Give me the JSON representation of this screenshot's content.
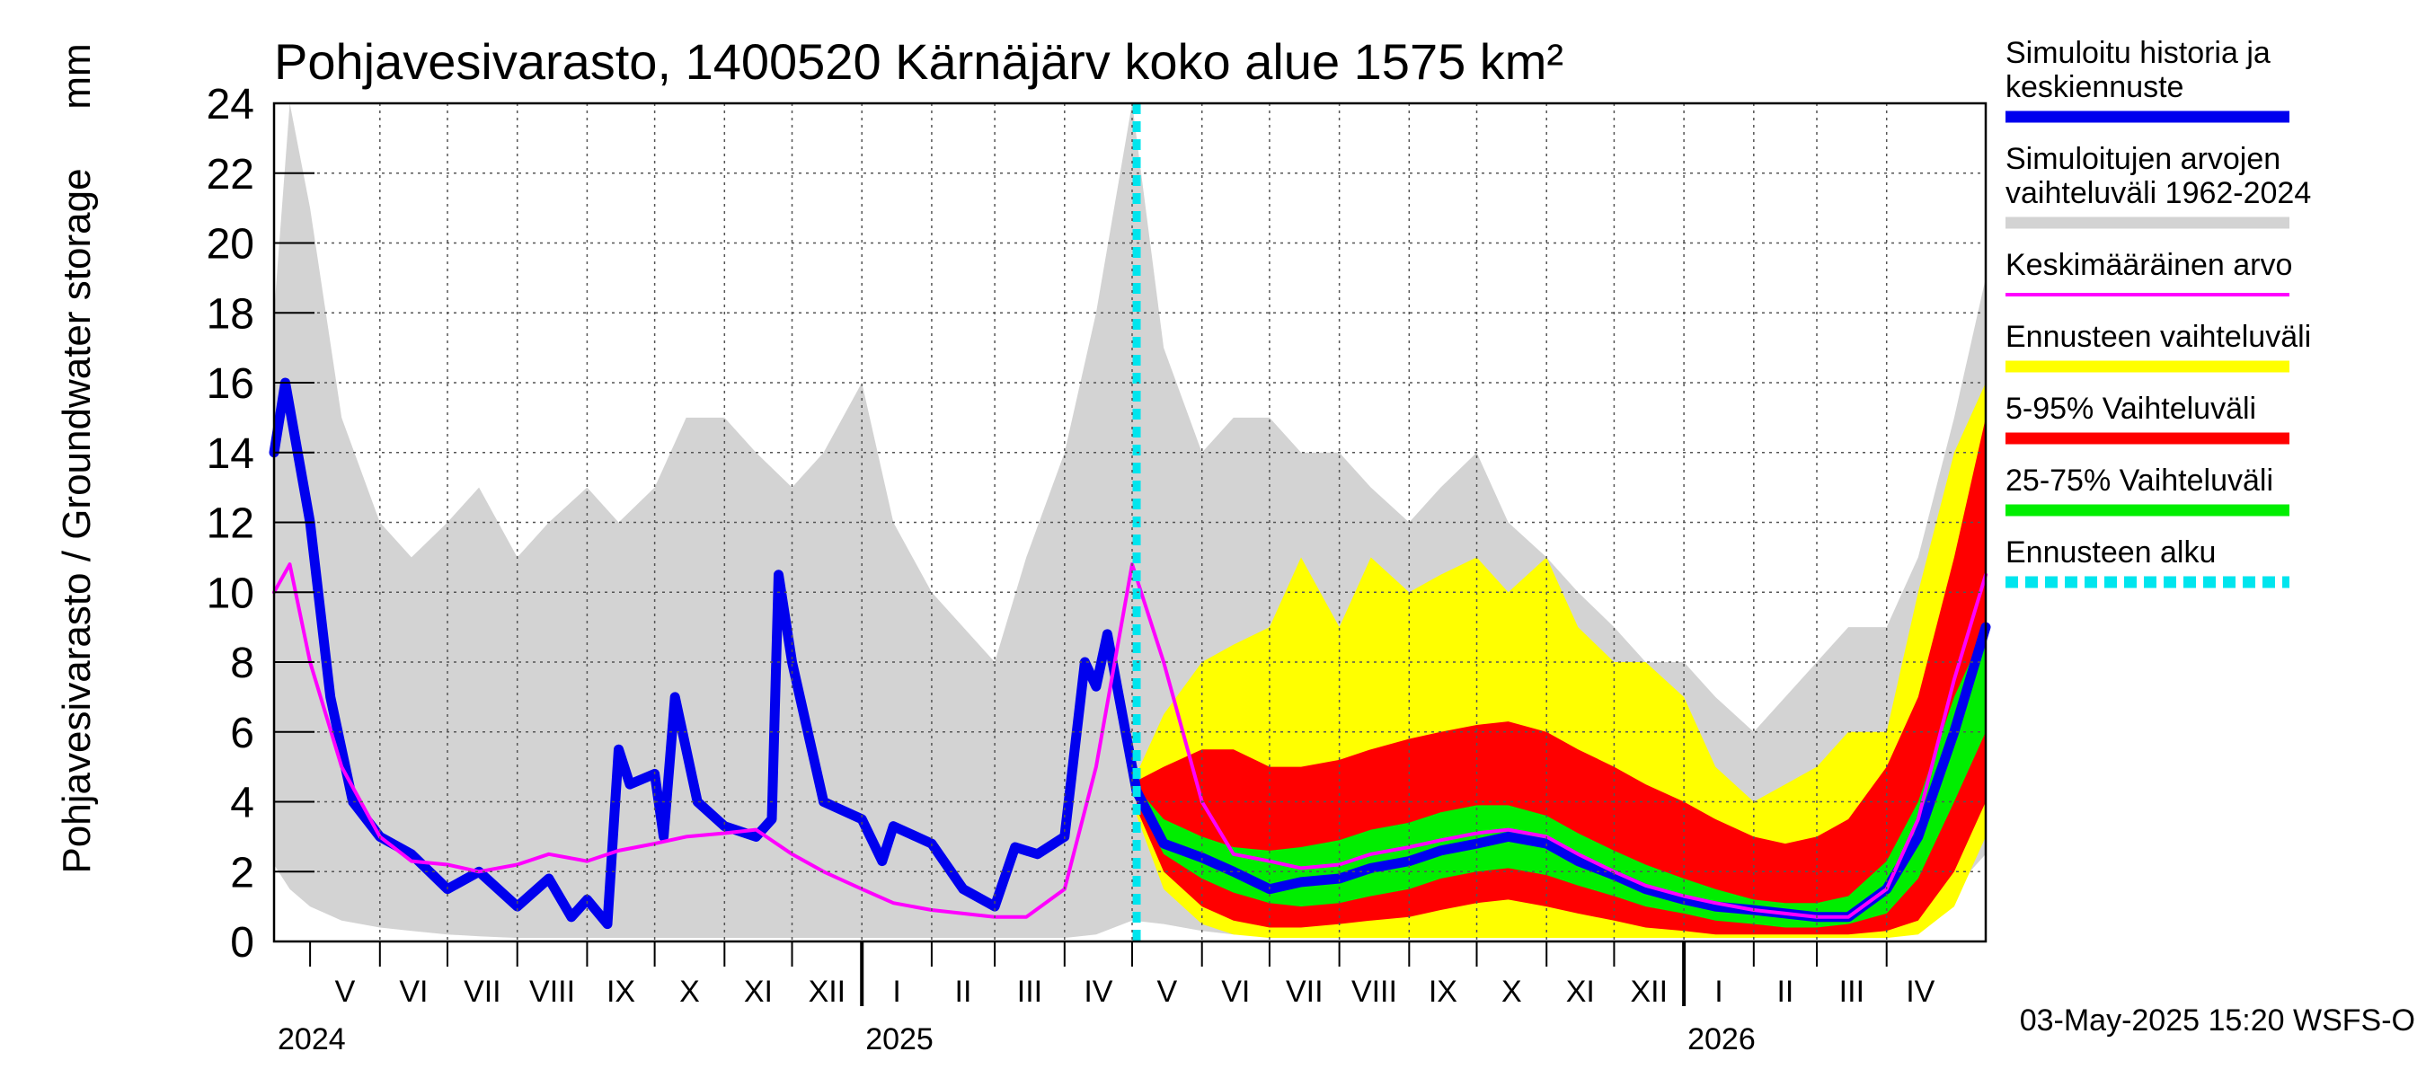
{
  "chart_data": {
    "type": "area",
    "title": "Pohjavesivarasto, 1400520 Kärnäjärv koko alue 1575 km²",
    "ylabel": "Pohjavesivarasto / Groundwater storage",
    "yunit": "mm",
    "ylim": [
      0,
      24
    ],
    "yticks": [
      "0",
      "2",
      "4",
      "6",
      "8",
      "10",
      "12",
      "14",
      "16",
      "18",
      "20",
      "22",
      "24"
    ],
    "xlim": [
      "2024-04-15",
      "2026-05-15"
    ],
    "grid": true,
    "legend_position": "right",
    "forecast_start": "2025-05-03",
    "months": [
      {
        "label": "V",
        "start": "2024-05-01",
        "end": "2024-06-01"
      },
      {
        "label": "VI",
        "start": "2024-06-01",
        "end": "2024-07-01"
      },
      {
        "label": "VII",
        "start": "2024-07-01",
        "end": "2024-08-01"
      },
      {
        "label": "VIII",
        "start": "2024-08-01",
        "end": "2024-09-01"
      },
      {
        "label": "IX",
        "start": "2024-09-01",
        "end": "2024-10-01"
      },
      {
        "label": "X",
        "start": "2024-10-01",
        "end": "2024-11-01"
      },
      {
        "label": "XI",
        "start": "2024-11-01",
        "end": "2024-12-01"
      },
      {
        "label": "XII",
        "start": "2024-12-01",
        "end": "2025-01-01"
      },
      {
        "label": "I",
        "start": "2025-01-01",
        "end": "2025-02-01"
      },
      {
        "label": "II",
        "start": "2025-02-01",
        "end": "2025-03-01"
      },
      {
        "label": "III",
        "start": "2025-03-01",
        "end": "2025-04-01"
      },
      {
        "label": "IV",
        "start": "2025-04-01",
        "end": "2025-05-01"
      },
      {
        "label": "V",
        "start": "2025-05-01",
        "end": "2025-06-01"
      },
      {
        "label": "VI",
        "start": "2025-06-01",
        "end": "2025-07-01"
      },
      {
        "label": "VII",
        "start": "2025-07-01",
        "end": "2025-08-01"
      },
      {
        "label": "VIII",
        "start": "2025-08-01",
        "end": "2025-09-01"
      },
      {
        "label": "IX",
        "start": "2025-09-01",
        "end": "2025-10-01"
      },
      {
        "label": "X",
        "start": "2025-10-01",
        "end": "2025-11-01"
      },
      {
        "label": "XI",
        "start": "2025-11-01",
        "end": "2025-12-01"
      },
      {
        "label": "XII",
        "start": "2025-12-01",
        "end": "2026-01-01"
      },
      {
        "label": "I",
        "start": "2026-01-01",
        "end": "2026-02-01"
      },
      {
        "label": "II",
        "start": "2026-02-01",
        "end": "2026-03-01"
      },
      {
        "label": "III",
        "start": "2026-03-01",
        "end": "2026-04-01"
      },
      {
        "label": "IV",
        "start": "2026-04-01",
        "end": "2026-05-01"
      }
    ],
    "years": [
      {
        "label": "2024",
        "date": "2024-04-15"
      },
      {
        "label": "2025",
        "date": "2025-01-01"
      },
      {
        "label": "2026",
        "date": "2026-01-01"
      }
    ],
    "series": [
      {
        "name": "Simuloitujen arvojen vaihteluväli 1962-2024",
        "kind": "band",
        "color": "#d3d3d3",
        "x": [
          "2024-04-15",
          "2024-04-22",
          "2024-05-01",
          "2024-05-15",
          "2024-06-01",
          "2024-06-15",
          "2024-07-01",
          "2024-07-15",
          "2024-08-01",
          "2024-08-15",
          "2024-09-01",
          "2024-09-15",
          "2024-10-01",
          "2024-10-15",
          "2024-11-01",
          "2024-11-15",
          "2024-12-01",
          "2024-12-15",
          "2025-01-01",
          "2025-01-15",
          "2025-02-01",
          "2025-02-15",
          "2025-03-01",
          "2025-03-15",
          "2025-04-01",
          "2025-04-15",
          "2025-05-01",
          "2025-05-15",
          "2025-06-01",
          "2025-06-15",
          "2025-07-01",
          "2025-07-15",
          "2025-08-01",
          "2025-08-15",
          "2025-09-01",
          "2025-09-15",
          "2025-10-01",
          "2025-10-15",
          "2025-11-01",
          "2025-11-15",
          "2025-12-01",
          "2025-12-15",
          "2026-01-01",
          "2026-01-15",
          "2026-02-01",
          "2026-02-15",
          "2026-03-01",
          "2026-03-15",
          "2026-04-01",
          "2026-04-15",
          "2026-05-01",
          "2026-05-15"
        ],
        "low": [
          2.2,
          1.5,
          1.0,
          0.6,
          0.4,
          0.3,
          0.2,
          0.15,
          0.1,
          0.1,
          0.1,
          0.1,
          0.1,
          0.1,
          0.1,
          0.1,
          0.1,
          0.1,
          0.1,
          0.1,
          0.1,
          0.1,
          0.1,
          0.1,
          0.1,
          0.2,
          0.6,
          0.5,
          0.3,
          0.2,
          0.15,
          0.1,
          0.1,
          0.1,
          0.1,
          0.1,
          0.1,
          0.1,
          0.1,
          0.1,
          0.1,
          0.1,
          0.1,
          0.1,
          0.1,
          0.1,
          0.1,
          0.1,
          0.1,
          0.3,
          1.5,
          2.5
        ],
        "high": [
          18,
          24,
          21,
          15,
          12,
          11,
          12,
          13,
          11,
          12,
          13,
          12,
          13,
          15,
          15,
          14,
          13,
          14,
          16,
          12,
          10,
          9,
          8,
          11,
          14,
          18,
          24,
          17,
          14,
          15,
          15,
          14,
          14,
          13,
          12,
          13,
          14,
          12,
          11,
          10,
          9,
          8,
          8,
          7,
          6,
          7,
          8,
          9,
          9,
          11,
          15,
          19
        ]
      },
      {
        "name": "Ennusteen vaihteluväli",
        "kind": "band",
        "color": "#ffff00",
        "x": [
          "2025-05-03",
          "2025-05-15",
          "2025-06-01",
          "2025-06-15",
          "2025-07-01",
          "2025-07-15",
          "2025-08-01",
          "2025-08-15",
          "2025-09-01",
          "2025-09-15",
          "2025-10-01",
          "2025-10-15",
          "2025-11-01",
          "2025-11-15",
          "2025-12-01",
          "2025-12-15",
          "2026-01-01",
          "2026-01-15",
          "2026-02-01",
          "2026-02-15",
          "2026-03-01",
          "2026-03-15",
          "2026-04-01",
          "2026-04-15",
          "2026-05-01",
          "2026-05-15"
        ],
        "low": [
          3.6,
          1.5,
          0.5,
          0.2,
          0.1,
          0.1,
          0.1,
          0.1,
          0.1,
          0.1,
          0.1,
          0.1,
          0.1,
          0.1,
          0.1,
          0.1,
          0.1,
          0.1,
          0.1,
          0.1,
          0.1,
          0.1,
          0.1,
          0.2,
          1.0,
          3.0
        ],
        "high": [
          4.8,
          6.5,
          8.0,
          8.5,
          9.0,
          11.0,
          9.0,
          11.0,
          10.0,
          10.5,
          11.0,
          10.0,
          11.0,
          9.0,
          8.0,
          8.0,
          7.0,
          5.0,
          4.0,
          4.5,
          5.0,
          6.0,
          6.0,
          10.0,
          14.0,
          16.0
        ]
      },
      {
        "name": "5-95% Vaihteluväli",
        "kind": "band",
        "color": "#ff0000",
        "x": [
          "2025-05-03",
          "2025-05-15",
          "2025-06-01",
          "2025-06-15",
          "2025-07-01",
          "2025-07-15",
          "2025-08-01",
          "2025-08-15",
          "2025-09-01",
          "2025-09-15",
          "2025-10-01",
          "2025-10-15",
          "2025-11-01",
          "2025-11-15",
          "2025-12-01",
          "2025-12-15",
          "2026-01-01",
          "2026-01-15",
          "2026-02-01",
          "2026-02-15",
          "2026-03-01",
          "2026-03-15",
          "2026-04-01",
          "2026-04-15",
          "2026-05-01",
          "2026-05-15"
        ],
        "low": [
          3.8,
          2.0,
          1.0,
          0.6,
          0.4,
          0.4,
          0.5,
          0.6,
          0.7,
          0.9,
          1.1,
          1.2,
          1.0,
          0.8,
          0.6,
          0.4,
          0.3,
          0.2,
          0.2,
          0.2,
          0.2,
          0.2,
          0.3,
          0.6,
          2.0,
          4.0
        ],
        "high": [
          4.6,
          5.0,
          5.5,
          5.5,
          5.0,
          5.0,
          5.2,
          5.5,
          5.8,
          6.0,
          6.2,
          6.3,
          6.0,
          5.5,
          5.0,
          4.5,
          4.0,
          3.5,
          3.0,
          2.8,
          3.0,
          3.5,
          5.0,
          7.0,
          11.0,
          15.0
        ]
      },
      {
        "name": "25-75% Vaihteluväli",
        "kind": "band",
        "color": "#00ee00",
        "x": [
          "2025-05-03",
          "2025-05-15",
          "2025-06-01",
          "2025-06-15",
          "2025-07-01",
          "2025-07-15",
          "2025-08-01",
          "2025-08-15",
          "2025-09-01",
          "2025-09-15",
          "2025-10-01",
          "2025-10-15",
          "2025-11-01",
          "2025-11-15",
          "2025-12-01",
          "2025-12-15",
          "2026-01-01",
          "2026-01-15",
          "2026-02-01",
          "2026-02-15",
          "2026-03-01",
          "2026-03-15",
          "2026-04-01",
          "2026-04-15",
          "2026-05-01",
          "2026-05-15"
        ],
        "low": [
          4.0,
          2.5,
          1.8,
          1.4,
          1.1,
          1.0,
          1.1,
          1.3,
          1.5,
          1.8,
          2.0,
          2.1,
          1.9,
          1.6,
          1.3,
          1.0,
          0.8,
          0.6,
          0.5,
          0.4,
          0.4,
          0.5,
          0.8,
          1.8,
          4.0,
          6.0
        ],
        "high": [
          4.4,
          3.5,
          3.0,
          2.7,
          2.6,
          2.7,
          2.9,
          3.2,
          3.4,
          3.7,
          3.9,
          3.9,
          3.6,
          3.1,
          2.6,
          2.2,
          1.8,
          1.5,
          1.2,
          1.1,
          1.1,
          1.3,
          2.3,
          4.0,
          7.0,
          9.0
        ]
      },
      {
        "name": "Simuloitu historia ja keskiennuste",
        "kind": "line",
        "color": "#0000ee",
        "x": [
          "2024-04-15",
          "2024-04-20",
          "2024-05-01",
          "2024-05-10",
          "2024-05-20",
          "2024-06-01",
          "2024-06-15",
          "2024-07-01",
          "2024-07-15",
          "2024-08-01",
          "2024-08-15",
          "2024-08-25",
          "2024-09-01",
          "2024-09-10",
          "2024-09-15",
          "2024-09-20",
          "2024-10-01",
          "2024-10-05",
          "2024-10-10",
          "2024-10-20",
          "2024-11-01",
          "2024-11-15",
          "2024-11-22",
          "2024-11-25",
          "2024-12-01",
          "2024-12-15",
          "2025-01-01",
          "2025-01-10",
          "2025-01-15",
          "2025-02-01",
          "2025-02-15",
          "2025-03-01",
          "2025-03-10",
          "2025-03-20",
          "2025-04-01",
          "2025-04-10",
          "2025-04-15",
          "2025-04-20",
          "2025-05-03",
          "2025-05-15",
          "2025-06-01",
          "2025-06-15",
          "2025-07-01",
          "2025-07-15",
          "2025-08-01",
          "2025-08-15",
          "2025-09-01",
          "2025-09-15",
          "2025-10-01",
          "2025-10-15",
          "2025-11-01",
          "2025-11-15",
          "2025-12-01",
          "2025-12-15",
          "2026-01-01",
          "2026-01-15",
          "2026-02-01",
          "2026-02-15",
          "2026-03-01",
          "2026-03-15",
          "2026-04-01",
          "2026-04-15",
          "2026-05-01",
          "2026-05-15"
        ],
        "y": [
          14,
          16,
          12,
          7,
          4,
          3,
          2.5,
          1.5,
          2,
          1,
          1.8,
          0.7,
          1.2,
          0.5,
          5.5,
          4.5,
          4.8,
          3,
          7,
          4,
          3.3,
          3,
          3.5,
          10.5,
          8,
          4,
          3.5,
          2.3,
          3.3,
          2.8,
          1.5,
          1,
          2.7,
          2.5,
          3,
          8,
          7.3,
          8.8,
          4.3,
          2.8,
          2.4,
          2,
          1.5,
          1.7,
          1.8,
          2.1,
          2.3,
          2.6,
          2.8,
          3,
          2.8,
          2.3,
          1.9,
          1.5,
          1.2,
          1,
          0.9,
          0.8,
          0.7,
          0.7,
          1.5,
          3,
          6,
          9
        ]
      },
      {
        "name": "Keskimääräinen arvo",
        "kind": "line",
        "color": "#ff00ff",
        "x": [
          "2024-04-15",
          "2024-04-22",
          "2024-05-01",
          "2024-05-15",
          "2024-06-01",
          "2024-06-15",
          "2024-07-01",
          "2024-07-15",
          "2024-08-01",
          "2024-08-15",
          "2024-09-01",
          "2024-09-15",
          "2024-10-01",
          "2024-10-15",
          "2024-11-01",
          "2024-11-15",
          "2024-12-01",
          "2024-12-15",
          "2025-01-01",
          "2025-01-15",
          "2025-02-01",
          "2025-02-15",
          "2025-03-01",
          "2025-03-15",
          "2025-04-01",
          "2025-04-15",
          "2025-05-01",
          "2025-05-15",
          "2025-06-01",
          "2025-06-15",
          "2025-07-01",
          "2025-07-15",
          "2025-08-01",
          "2025-08-15",
          "2025-09-01",
          "2025-09-15",
          "2025-10-01",
          "2025-10-15",
          "2025-11-01",
          "2025-11-15",
          "2025-12-01",
          "2025-12-15",
          "2026-01-01",
          "2026-01-15",
          "2026-02-01",
          "2026-02-15",
          "2026-03-01",
          "2026-03-15",
          "2026-04-01",
          "2026-04-15",
          "2026-05-01",
          "2026-05-15"
        ],
        "y": [
          10,
          10.8,
          8,
          5,
          3,
          2.3,
          2.2,
          2,
          2.2,
          2.5,
          2.3,
          2.6,
          2.8,
          3,
          3.1,
          3.2,
          2.5,
          2,
          1.5,
          1.1,
          0.9,
          0.8,
          0.7,
          0.7,
          1.5,
          5,
          10.8,
          8,
          4,
          2.5,
          2.3,
          2.1,
          2.2,
          2.5,
          2.7,
          2.9,
          3.1,
          3.2,
          3,
          2.5,
          2,
          1.6,
          1.3,
          1.1,
          0.9,
          0.8,
          0.7,
          0.7,
          1.5,
          3.5,
          7.5,
          10.5
        ]
      },
      {
        "name": "Ennusteen alku",
        "kind": "vline",
        "color": "#00e5ee",
        "x": [
          "2025-05-03"
        ]
      }
    ]
  },
  "legend": [
    {
      "lines": [
        "Simuloitu historia ja",
        "keskiennuste"
      ],
      "color": "#0000ee",
      "style": "solid"
    },
    {
      "lines": [
        "Simuloitujen arvojen",
        "vaihteluväli 1962-2024"
      ],
      "color": "#d3d3d3",
      "style": "solid"
    },
    {
      "lines": [
        "Keskimääräinen arvo"
      ],
      "color": "#ff00ff",
      "style": "thin"
    },
    {
      "lines": [
        "Ennusteen vaihteluväli"
      ],
      "color": "#ffff00",
      "style": "solid"
    },
    {
      "lines": [
        "5-95% Vaihteluväli"
      ],
      "color": "#ff0000",
      "style": "solid"
    },
    {
      "lines": [
        "25-75% Vaihteluväli"
      ],
      "color": "#00ee00",
      "style": "solid"
    },
    {
      "lines": [
        "Ennusteen alku"
      ],
      "color": "#00e5ee",
      "style": "dashed"
    }
  ],
  "footer": "03-May-2025 15:20 WSFS-O"
}
